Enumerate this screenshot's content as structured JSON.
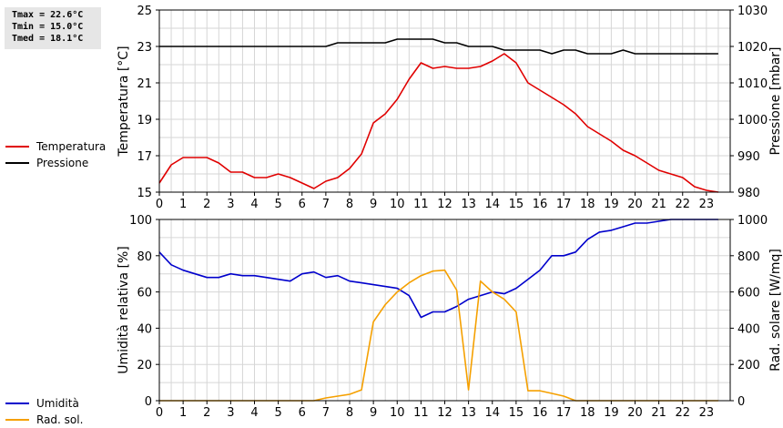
{
  "stats": {
    "tmax": "Tmax = 22.6°C",
    "tmin": "Tmin = 15.0°C",
    "tmed": "Tmed = 18.1°C"
  },
  "colors": {
    "temperatura": "#e00000",
    "pressione": "#000000",
    "umidita": "#0000cc",
    "radsol": "#f5a000",
    "grid": "#d6d6d6"
  },
  "chart_data": [
    {
      "type": "line",
      "xlim": [
        0,
        24
      ],
      "x_ticks": [
        "0",
        "1",
        "2",
        "3",
        "4",
        "5",
        "6",
        "7",
        "8",
        "9",
        "10",
        "11",
        "12",
        "13",
        "14",
        "15",
        "16",
        "17",
        "18",
        "19",
        "20",
        "21",
        "22",
        "23"
      ],
      "ylabel": "Temperatura [°C]",
      "ylim": [
        15,
        25
      ],
      "y_ticks": [
        "15",
        "17",
        "19",
        "21",
        "23",
        "25"
      ],
      "y2label": "Pressione [mbar]",
      "y2lim": [
        980,
        1030
      ],
      "y2_ticks": [
        "980",
        "990",
        "1000",
        "1010",
        "1020",
        "1030"
      ],
      "grid": true,
      "legend_position": "left",
      "series": [
        {
          "name": "Temperatura",
          "axis": "left",
          "x": [
            0,
            0.5,
            1,
            1.5,
            2,
            2.5,
            3,
            3.5,
            4,
            4.5,
            5,
            5.5,
            6,
            6.5,
            7,
            7.5,
            8,
            8.5,
            9,
            9.5,
            10,
            10.5,
            11,
            11.5,
            12,
            12.5,
            13,
            13.5,
            14,
            14.5,
            15,
            15.5,
            16,
            16.5,
            17,
            17.5,
            18,
            18.5,
            19,
            19.5,
            20,
            20.5,
            21,
            21.5,
            22,
            22.5,
            23,
            23.5
          ],
          "values": [
            15.5,
            16.5,
            16.9,
            16.9,
            16.9,
            16.6,
            16.1,
            16.1,
            15.8,
            15.8,
            16.0,
            15.8,
            15.5,
            15.2,
            15.6,
            15.8,
            16.3,
            17.1,
            18.8,
            19.3,
            20.1,
            21.2,
            22.1,
            21.8,
            21.9,
            21.8,
            21.8,
            21.9,
            22.2,
            22.6,
            22.1,
            21.0,
            20.6,
            20.2,
            19.8,
            19.3,
            18.6,
            18.2,
            17.8,
            17.3,
            17.0,
            16.6,
            16.2,
            16.0,
            15.8,
            15.3,
            15.1,
            15.0
          ]
        },
        {
          "name": "Pressione",
          "axis": "right",
          "x": [
            0,
            0.5,
            1,
            1.5,
            2,
            2.5,
            3,
            3.5,
            4,
            4.5,
            5,
            5.5,
            6,
            6.5,
            7,
            7.5,
            8,
            8.5,
            9,
            9.5,
            10,
            10.5,
            11,
            11.5,
            12,
            12.5,
            13,
            13.5,
            14,
            14.5,
            15,
            15.5,
            16,
            16.5,
            17,
            17.5,
            18,
            18.5,
            19,
            19.5,
            20,
            20.5,
            21,
            21.5,
            22,
            22.5,
            23,
            23.5
          ],
          "values": [
            1020,
            1020,
            1020,
            1020,
            1020,
            1020,
            1020,
            1020,
            1020,
            1020,
            1020,
            1020,
            1020,
            1020,
            1020,
            1021,
            1021,
            1021,
            1021,
            1021,
            1022,
            1022,
            1022,
            1022,
            1021,
            1021,
            1020,
            1020,
            1020,
            1019,
            1019,
            1019,
            1019,
            1018,
            1019,
            1019,
            1018,
            1018,
            1018,
            1019,
            1018,
            1018,
            1018,
            1018,
            1018,
            1018,
            1018,
            1018
          ]
        }
      ]
    },
    {
      "type": "line",
      "xlim": [
        0,
        24
      ],
      "x_ticks": [
        "0",
        "1",
        "2",
        "3",
        "4",
        "5",
        "6",
        "7",
        "8",
        "9",
        "10",
        "11",
        "12",
        "13",
        "14",
        "15",
        "16",
        "17",
        "18",
        "19",
        "20",
        "21",
        "22",
        "23"
      ],
      "ylabel": "Umidità relativa [%]",
      "ylim": [
        0,
        100
      ],
      "y_ticks": [
        "0",
        "20",
        "40",
        "60",
        "80",
        "100"
      ],
      "y2label": "Rad. solare [W/mq]",
      "y2lim": [
        0,
        1000
      ],
      "y2_ticks": [
        "0",
        "200",
        "400",
        "600",
        "800",
        "1000"
      ],
      "grid": true,
      "legend_position": "left",
      "series": [
        {
          "name": "Umidità",
          "axis": "left",
          "x": [
            0,
            0.5,
            1,
            1.5,
            2,
            2.5,
            3,
            3.5,
            4,
            4.5,
            5,
            5.5,
            6,
            6.5,
            7,
            7.5,
            8,
            8.5,
            9,
            9.5,
            10,
            10.5,
            11,
            11.5,
            12,
            12.5,
            13,
            13.5,
            14,
            14.5,
            15,
            15.5,
            16,
            16.5,
            17,
            17.5,
            18,
            18.5,
            19,
            19.5,
            20,
            20.5,
            21,
            21.5,
            22,
            22.5,
            23,
            23.5
          ],
          "values": [
            82,
            75,
            72,
            70,
            68,
            68,
            70,
            69,
            69,
            68,
            67,
            66,
            70,
            71,
            68,
            69,
            66,
            65,
            64,
            63,
            62,
            58,
            46,
            49,
            49,
            52,
            56,
            58,
            60,
            59,
            62,
            67,
            72,
            80,
            80,
            82,
            89,
            93,
            94,
            96,
            98,
            98,
            99,
            100,
            100,
            100,
            100,
            100
          ]
        },
        {
          "name": "Rad. sol.",
          "axis": "right",
          "x": [
            0,
            0.5,
            1,
            1.5,
            2,
            2.5,
            3,
            3.5,
            4,
            4.5,
            5,
            5.5,
            6,
            6.5,
            7,
            7.5,
            8,
            8.5,
            9,
            9.5,
            10,
            10.5,
            11,
            11.5,
            12,
            12.5,
            13,
            13.5,
            14,
            14.5,
            15,
            15.5,
            16,
            16.5,
            17,
            17.5,
            18,
            18.5,
            19,
            19.5,
            20,
            20.5,
            21,
            21.5,
            22,
            22.5,
            23,
            23.5
          ],
          "values": [
            0,
            0,
            0,
            0,
            0,
            0,
            0,
            0,
            0,
            0,
            0,
            0,
            0,
            0,
            15,
            25,
            35,
            60,
            435,
            530,
            600,
            650,
            690,
            715,
            720,
            610,
            60,
            660,
            600,
            560,
            490,
            55,
            55,
            40,
            25,
            0,
            0,
            0,
            0,
            0,
            0,
            0,
            0,
            0,
            0,
            0,
            0,
            0
          ]
        }
      ]
    }
  ]
}
